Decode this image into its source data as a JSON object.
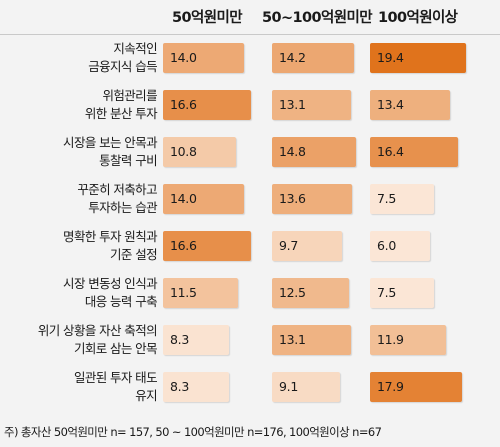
{
  "chart_data": {
    "type": "table",
    "columns": [
      "50억원미만",
      "50~100억원미만",
      "100억원이상"
    ],
    "rows": [
      {
        "label_line1": "지속적인",
        "label_line2": "금융지식 습득",
        "values": [
          14.0,
          14.2,
          19.4
        ]
      },
      {
        "label_line1": "위험관리를",
        "label_line2": "위한 분산 투자",
        "values": [
          16.6,
          13.1,
          13.4
        ]
      },
      {
        "label_line1": "시장을 보는 안목과",
        "label_line2": "통찰력 구비",
        "values": [
          10.8,
          14.8,
          16.4
        ]
      },
      {
        "label_line1": "꾸준히 저축하고",
        "label_line2": "투자하는 습관",
        "values": [
          14.0,
          13.6,
          7.5
        ]
      },
      {
        "label_line1": "명확한 투자 원칙과",
        "label_line2": "기준 설정",
        "values": [
          16.6,
          9.7,
          6.0
        ]
      },
      {
        "label_line1": "시장 변동성 인식과",
        "label_line2": "대응 능력 구축",
        "values": [
          11.5,
          12.5,
          7.5
        ]
      },
      {
        "label_line1": "위기 상황을 자산 축적의",
        "label_line2": "기회로 삼는 안목",
        "values": [
          8.3,
          13.1,
          11.9
        ]
      },
      {
        "label_line1": "일관된 투자 태도",
        "label_line2": "유지",
        "values": [
          8.3,
          9.1,
          17.9
        ]
      }
    ],
    "footnote": "주) 총자산 50억원미만 n= 157, 50 ~ 100억원미만 n=176, 100억원이상 n=67",
    "colors": {
      "low": "#fbe6d6",
      "high": "#e0731c",
      "background": "#f3f3f3"
    }
  }
}
